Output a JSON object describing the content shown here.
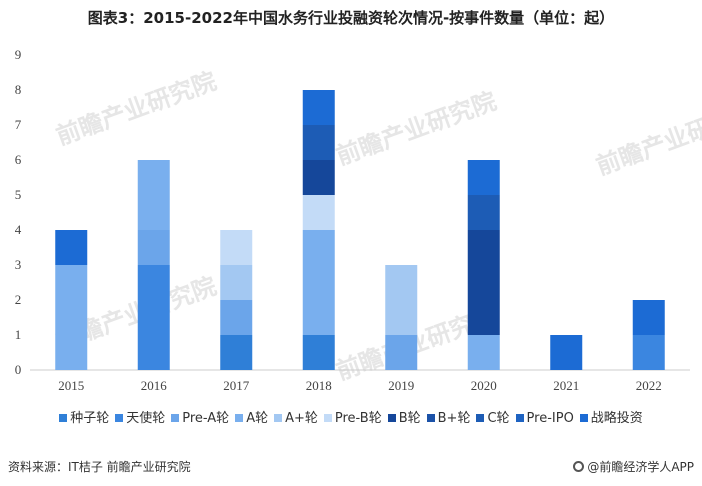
{
  "title": "图表3：2015-2022年中国水务行业投融资轮次情况-按事件数量（单位：起）",
  "source": "资料来源：IT桔子 前瞻产业研究院",
  "brand": "@前瞻经济学人APP",
  "watermark": "前瞻产业研究院",
  "chart_data": {
    "type": "bar",
    "stacked": true,
    "categories": [
      "2015",
      "2016",
      "2017",
      "2018",
      "2019",
      "2020",
      "2021",
      "2022"
    ],
    "ylim": [
      0,
      9
    ],
    "yticks": [
      0,
      1,
      2,
      3,
      4,
      5,
      6,
      7,
      8,
      9
    ],
    "grid": false,
    "legend_position": "bottom",
    "series": [
      {
        "name": "种子轮",
        "color": "#2f7fd7",
        "values": [
          0,
          0,
          1,
          1,
          0,
          0,
          0,
          0
        ]
      },
      {
        "name": "天使轮",
        "color": "#3b86e0",
        "values": [
          0,
          3,
          0,
          0,
          0,
          0,
          0,
          1
        ]
      },
      {
        "name": "Pre-A轮",
        "color": "#6ba5ea",
        "values": [
          0,
          1,
          1,
          0,
          1,
          0,
          0,
          0
        ]
      },
      {
        "name": "A轮",
        "color": "#79afee",
        "values": [
          3,
          2,
          0,
          3,
          0,
          1,
          0,
          0
        ]
      },
      {
        "name": "A+轮",
        "color": "#a3c8f2",
        "values": [
          0,
          0,
          1,
          0,
          2,
          0,
          0,
          0
        ]
      },
      {
        "name": "Pre-B轮",
        "color": "#c3dbf7",
        "values": [
          0,
          0,
          1,
          1,
          0,
          0,
          0,
          0
        ]
      },
      {
        "name": "B轮",
        "color": "#15479a",
        "values": [
          0,
          0,
          0,
          1,
          0,
          3,
          0,
          0
        ]
      },
      {
        "name": "B+轮",
        "color": "#1b52a8",
        "values": [
          0,
          0,
          0,
          0,
          0,
          0,
          0,
          0
        ]
      },
      {
        "name": "C轮",
        "color": "#1d5cb5",
        "values": [
          0,
          0,
          0,
          1,
          0,
          1,
          0,
          0
        ]
      },
      {
        "name": "Pre-IPO",
        "color": "#1e63c2",
        "values": [
          0,
          0,
          0,
          0,
          0,
          0,
          0,
          0
        ]
      },
      {
        "name": "战略投资",
        "color": "#1c6bd4",
        "values": [
          1,
          0,
          0,
          1,
          0,
          1,
          1,
          1
        ]
      }
    ]
  }
}
